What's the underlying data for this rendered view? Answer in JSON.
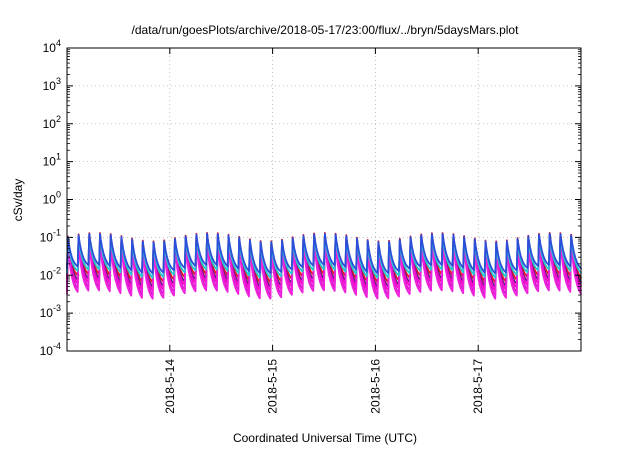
{
  "chart_data": {
    "type": "line",
    "title": "/data/run/goesPlots/archive/2018-05-17/23:00/flux/../bryn/5daysMars.plot",
    "xlabel": "Coordinated Universal Time (UTC)",
    "ylabel": "cSv/day",
    "yscale": "log",
    "ylim": [
      0.0001,
      10000
    ],
    "xlim": [
      "2018-05-13 00:00",
      "2018-05-18 00:00"
    ],
    "x_ticks": [
      "2018-5-14",
      "2018-5-15",
      "2018-5-16",
      "2018-5-17"
    ],
    "y_ticks": [
      {
        "base": "10",
        "exp": "-4"
      },
      {
        "base": "10",
        "exp": "-3"
      },
      {
        "base": "10",
        "exp": "-2"
      },
      {
        "base": "10",
        "exp": "-1"
      },
      {
        "base": "10",
        "exp": "0"
      },
      {
        "base": "10",
        "exp": "1"
      },
      {
        "base": "10",
        "exp": "2"
      },
      {
        "base": "10",
        "exp": "3"
      },
      {
        "base": "10",
        "exp": "4"
      }
    ],
    "grid": true,
    "legend": "none",
    "cycle_hours": 2.5,
    "series": [
      {
        "color": "#e8161f",
        "peak": 0.105,
        "trough": 0.0085
      },
      {
        "color": "#6a1a8a",
        "peak": 0.095,
        "trough": 0.0065
      },
      {
        "color": "#ff00d0",
        "peak": 0.08,
        "trough": 0.0052
      },
      {
        "color": "#d81bc8",
        "peak": 0.07,
        "trough": 0.004
      },
      {
        "color": "#ee22dd",
        "peak": 0.06,
        "trough": 0.0032
      },
      {
        "color": "#24c8d0",
        "peak": 0.085,
        "trough": 0.0115
      },
      {
        "color": "#2a4fd8",
        "peak": 0.1,
        "trough": 0.015
      }
    ]
  }
}
